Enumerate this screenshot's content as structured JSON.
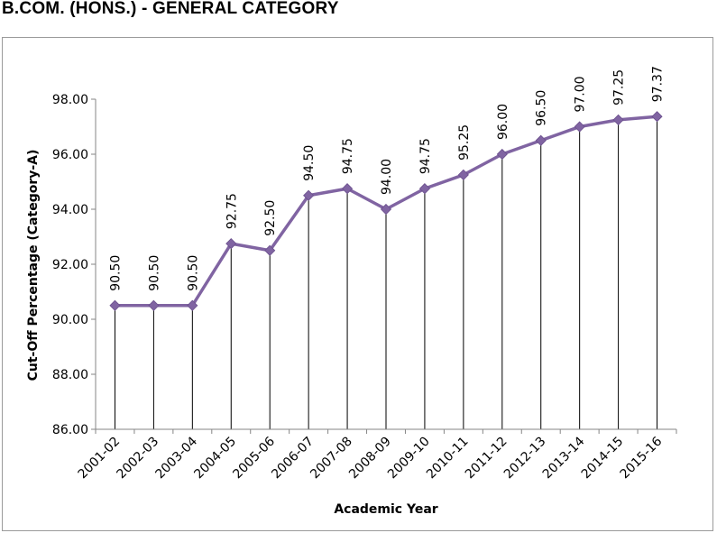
{
  "page": {
    "title": "B.COM. (HONS.) - GENERAL CATEGORY"
  },
  "chart_data": {
    "type": "line",
    "title": "",
    "xlabel": "Academic Year",
    "ylabel": "Cut-Off Percentage (Category-A)",
    "categories": [
      "2001-02",
      "2002-03",
      "2003-04",
      "2004-05",
      "2005-06",
      "2006-07",
      "2007-08",
      "2008-09",
      "2009-10",
      "2010-11",
      "2011-12",
      "2012-13",
      "2013-14",
      "2014-15",
      "2015-16"
    ],
    "series": [
      {
        "values": [
          90.5,
          90.5,
          90.5,
          92.75,
          92.5,
          94.5,
          94.75,
          94.0,
          94.75,
          95.25,
          96.0,
          96.5,
          97.0,
          97.25,
          97.37
        ],
        "data_labels": [
          "90.50",
          "90.50",
          "90.50",
          "92.75",
          "92.50",
          "94.50",
          "94.75",
          "94.00",
          "94.75",
          "95.25",
          "96.00",
          "96.50",
          "97.00",
          "97.25",
          "97.37"
        ]
      }
    ],
    "ylim": [
      86,
      98
    ],
    "y_ticks": [
      "86.00",
      "88.00",
      "90.00",
      "92.00",
      "94.00",
      "96.00",
      "98.00"
    ],
    "drop_lines": true,
    "grid": false,
    "legend": "none",
    "colors": {
      "line": "#8064A2",
      "marker": "#8064A2",
      "drop_line": "#000000",
      "axis": "#868686"
    }
  }
}
